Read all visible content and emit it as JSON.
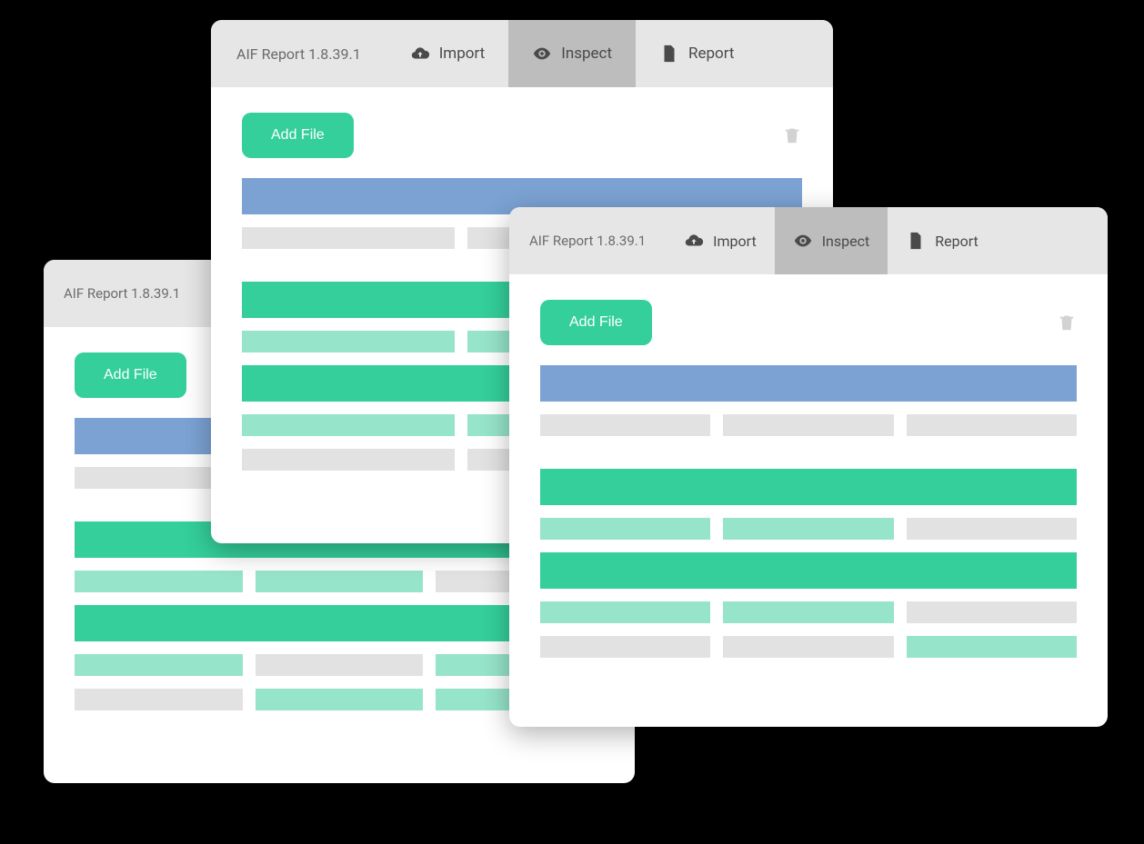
{
  "colors": {
    "accent_green": "#34cf9a",
    "light_green": "#96e4c9",
    "blue": "#7ba2d3",
    "grey_bar": "#e2e2e2",
    "topbar_bg": "#e6e6e6",
    "tab_active_bg": "#bdbdbd",
    "text_muted": "#6b6b6b",
    "trash_grey": "#d2d2d2",
    "white": "#ffffff",
    "page_bg": "#000000"
  },
  "app": {
    "title": "AIF Report 1.8.39.1"
  },
  "tabs": {
    "import": "Import",
    "inspect": "Inspect",
    "report": "Report"
  },
  "toolbar": {
    "add_file": "Add File"
  },
  "window_back_left": {
    "title": "AIF Report 1.8.39.1",
    "rows": [
      {
        "type": "header",
        "color": "blue"
      },
      {
        "type": "sub_short",
        "color": "grey_bar"
      },
      {
        "type": "gap"
      },
      {
        "type": "header",
        "color": "accent_green"
      },
      {
        "type": "row3",
        "colors": [
          "light_green",
          "light_green",
          "grey_bar"
        ]
      },
      {
        "type": "header",
        "color": "accent_green"
      },
      {
        "type": "row3",
        "colors": [
          "light_green",
          "grey_bar",
          "light_green"
        ]
      },
      {
        "type": "row3",
        "colors": [
          "grey_bar",
          "light_green",
          "light_green"
        ]
      }
    ]
  },
  "window_center": {
    "title": "AIF Report 1.8.39.1",
    "active_tab": "inspect",
    "rows": [
      {
        "type": "header",
        "color": "blue"
      },
      {
        "type": "row2",
        "colors": [
          "grey_bar",
          "grey_bar"
        ]
      },
      {
        "type": "gap"
      },
      {
        "type": "header",
        "color": "accent_green"
      },
      {
        "type": "row2",
        "colors": [
          "light_green",
          "light_green"
        ]
      },
      {
        "type": "header",
        "color": "accent_green"
      },
      {
        "type": "row2",
        "colors": [
          "light_green",
          "light_green"
        ]
      },
      {
        "type": "row2",
        "colors": [
          "grey_bar",
          "grey_bar"
        ]
      }
    ]
  },
  "window_front_right": {
    "title": "AIF Report 1.8.39.1",
    "active_tab": "inspect",
    "rows": [
      {
        "type": "header",
        "color": "blue"
      },
      {
        "type": "row3",
        "colors": [
          "grey_bar",
          "grey_bar",
          "grey_bar"
        ]
      },
      {
        "type": "gap"
      },
      {
        "type": "header",
        "color": "accent_green"
      },
      {
        "type": "row3",
        "colors": [
          "light_green",
          "light_green",
          "grey_bar"
        ]
      },
      {
        "type": "header",
        "color": "accent_green"
      },
      {
        "type": "row3",
        "colors": [
          "light_green",
          "light_green",
          "grey_bar"
        ]
      },
      {
        "type": "row3",
        "colors": [
          "grey_bar",
          "grey_bar",
          "light_green"
        ]
      }
    ]
  }
}
